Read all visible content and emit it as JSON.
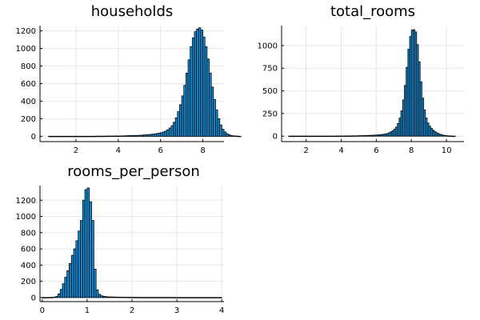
{
  "chart_data": [
    {
      "type": "bar",
      "title": "households",
      "xlabel": "",
      "ylabel": "",
      "xlim": [
        0.3,
        9.0
      ],
      "ylim": [
        -60,
        1260
      ],
      "x_ticks": [
        2,
        4,
        6,
        8
      ],
      "y_ticks": [
        0,
        200,
        400,
        600,
        800,
        1000,
        1200
      ],
      "grid": true,
      "legend": "none",
      "bin_start": 0.7,
      "bin_width": 0.1,
      "values": [
        1,
        1,
        1,
        1,
        1,
        1,
        1,
        1,
        1,
        1,
        1,
        1,
        1,
        1,
        1,
        1,
        1,
        1,
        1,
        1,
        1,
        1,
        2,
        2,
        2,
        2,
        2,
        3,
        3,
        3,
        3,
        4,
        4,
        4,
        5,
        5,
        6,
        7,
        8,
        9,
        9,
        10,
        11,
        12,
        14,
        16,
        18,
        20,
        22,
        25,
        28,
        32,
        36,
        42,
        50,
        60,
        75,
        95,
        120,
        160,
        210,
        280,
        360,
        460,
        580,
        720,
        870,
        1020,
        1120,
        1190,
        1220,
        1235,
        1210,
        1130,
        1020,
        880,
        720,
        560,
        420,
        300,
        200,
        130,
        80,
        50,
        30,
        18,
        10,
        6,
        4,
        2,
        1
      ]
    },
    {
      "type": "bar",
      "title": "total_rooms",
      "xlabel": "",
      "ylabel": "",
      "xlim": [
        0.6,
        11.0
      ],
      "ylim": [
        -60,
        1220
      ],
      "x_ticks": [
        2,
        4,
        6,
        8,
        10
      ],
      "y_ticks": [
        0,
        250,
        500,
        750,
        1000
      ],
      "grid": true,
      "legend": "none",
      "bin_start": 1.0,
      "bin_width": 0.1,
      "values": [
        1,
        1,
        1,
        1,
        1,
        1,
        1,
        1,
        1,
        1,
        1,
        1,
        1,
        1,
        1,
        1,
        1,
        1,
        1,
        1,
        1,
        1,
        1,
        1,
        1,
        1,
        2,
        2,
        2,
        2,
        2,
        2,
        2,
        3,
        3,
        3,
        3,
        4,
        4,
        4,
        5,
        5,
        6,
        6,
        7,
        8,
        9,
        10,
        11,
        12,
        13,
        15,
        17,
        19,
        22,
        25,
        30,
        38,
        48,
        60,
        78,
        100,
        140,
        200,
        280,
        400,
        560,
        760,
        960,
        1100,
        1170,
        1175,
        1150,
        1010,
        820,
        600,
        420,
        290,
        200,
        145,
        110,
        85,
        65,
        50,
        38,
        28,
        20,
        14,
        10,
        7,
        5,
        3,
        2,
        1,
        1
      ]
    },
    {
      "type": "bar",
      "title": "rooms_per_person",
      "xlabel": "",
      "ylabel": "",
      "xlim": [
        -0.05,
        4.05
      ],
      "ylim": [
        -50,
        1380
      ],
      "x_ticks": [
        0,
        1,
        2,
        3,
        4
      ],
      "y_ticks": [
        0,
        200,
        400,
        600,
        800,
        1000,
        1200
      ],
      "grid": true,
      "legend": "none",
      "bin_start": 0.0,
      "bin_width": 0.05,
      "values": [
        1,
        1,
        1,
        2,
        3,
        6,
        14,
        45,
        100,
        170,
        250,
        330,
        420,
        520,
        600,
        700,
        820,
        950,
        1200,
        1330,
        1350,
        1180,
        950,
        350,
        95,
        40,
        22,
        15,
        11,
        9,
        8,
        7,
        6,
        6,
        5,
        5,
        4,
        4,
        4,
        3,
        3,
        3,
        3,
        2,
        2,
        2,
        2,
        2,
        2,
        2,
        2,
        2,
        2,
        2,
        2,
        2,
        2,
        2,
        2,
        1,
        1,
        1,
        1,
        1,
        1,
        1,
        1,
        1,
        1,
        1,
        1,
        1,
        1,
        1,
        1,
        1,
        1,
        1,
        1,
        1
      ]
    }
  ]
}
